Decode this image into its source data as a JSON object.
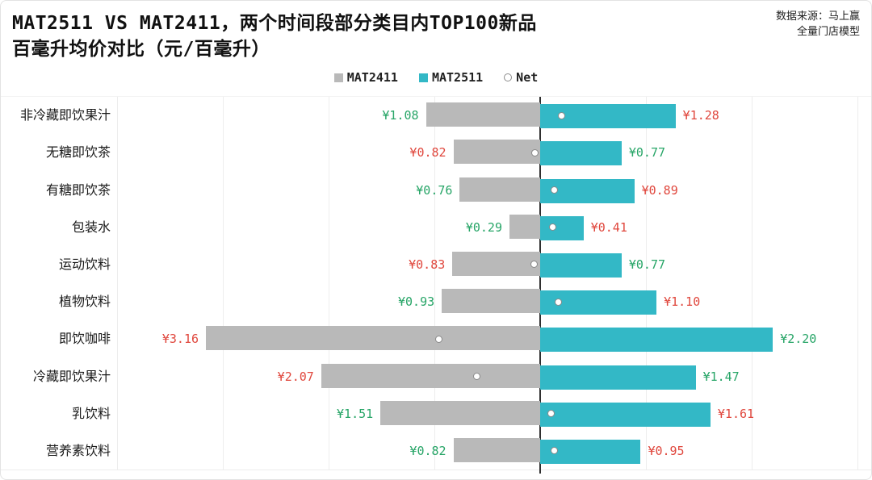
{
  "title": {
    "line1": "MAT2511 VS MAT2411，两个时间段部分类目内TOP100新品",
    "line2": "百毫升均价对比（元/百毫升）"
  },
  "source": {
    "line1": "数据来源：马上赢",
    "line2": "全量门店模型"
  },
  "legend": [
    {
      "label": "MAT2411",
      "marker": "square",
      "color": "#b9b9b9"
    },
    {
      "label": "MAT2511",
      "marker": "square",
      "color": "#33b8c6"
    },
    {
      "label": "Net",
      "marker": "circle",
      "color": "#ffffff"
    }
  ],
  "colors": {
    "mat2411_bar": "#b9b9b9",
    "mat2511_bar": "#33b8c6",
    "value_higher": "#e0473d",
    "value_lower": "#27a567",
    "axis": "#2f2f2f",
    "gridline": "#ededed"
  },
  "chart_data": {
    "type": "bar",
    "orientation": "diverging-horizontal",
    "title": "MAT2511 VS MAT2411，两个时间段部分类目内TOP100新品 百毫升均价对比（元/百毫升）",
    "value_prefix": "¥",
    "xlim": [
      -4,
      3
    ],
    "grid": true,
    "legend_position": "top-center",
    "categories": [
      "非冷藏即饮果汁",
      "无糖即饮茶",
      "有糖即饮茶",
      "包装水",
      "运动饮料",
      "植物饮料",
      "即饮咖啡",
      "冷藏即饮果汁",
      "乳饮料",
      "营养素饮料"
    ],
    "series": [
      {
        "name": "MAT2411",
        "values": [
          1.08,
          0.82,
          0.76,
          0.29,
          0.83,
          0.93,
          3.16,
          2.07,
          1.51,
          0.82
        ]
      },
      {
        "name": "MAT2511",
        "values": [
          1.28,
          0.77,
          0.89,
          0.41,
          0.77,
          1.1,
          2.2,
          1.47,
          1.61,
          0.95
        ]
      }
    ],
    "net": [
      0.2,
      -0.05,
      0.13,
      0.12,
      -0.06,
      0.17,
      -0.96,
      -0.6,
      0.1,
      0.13
    ]
  }
}
